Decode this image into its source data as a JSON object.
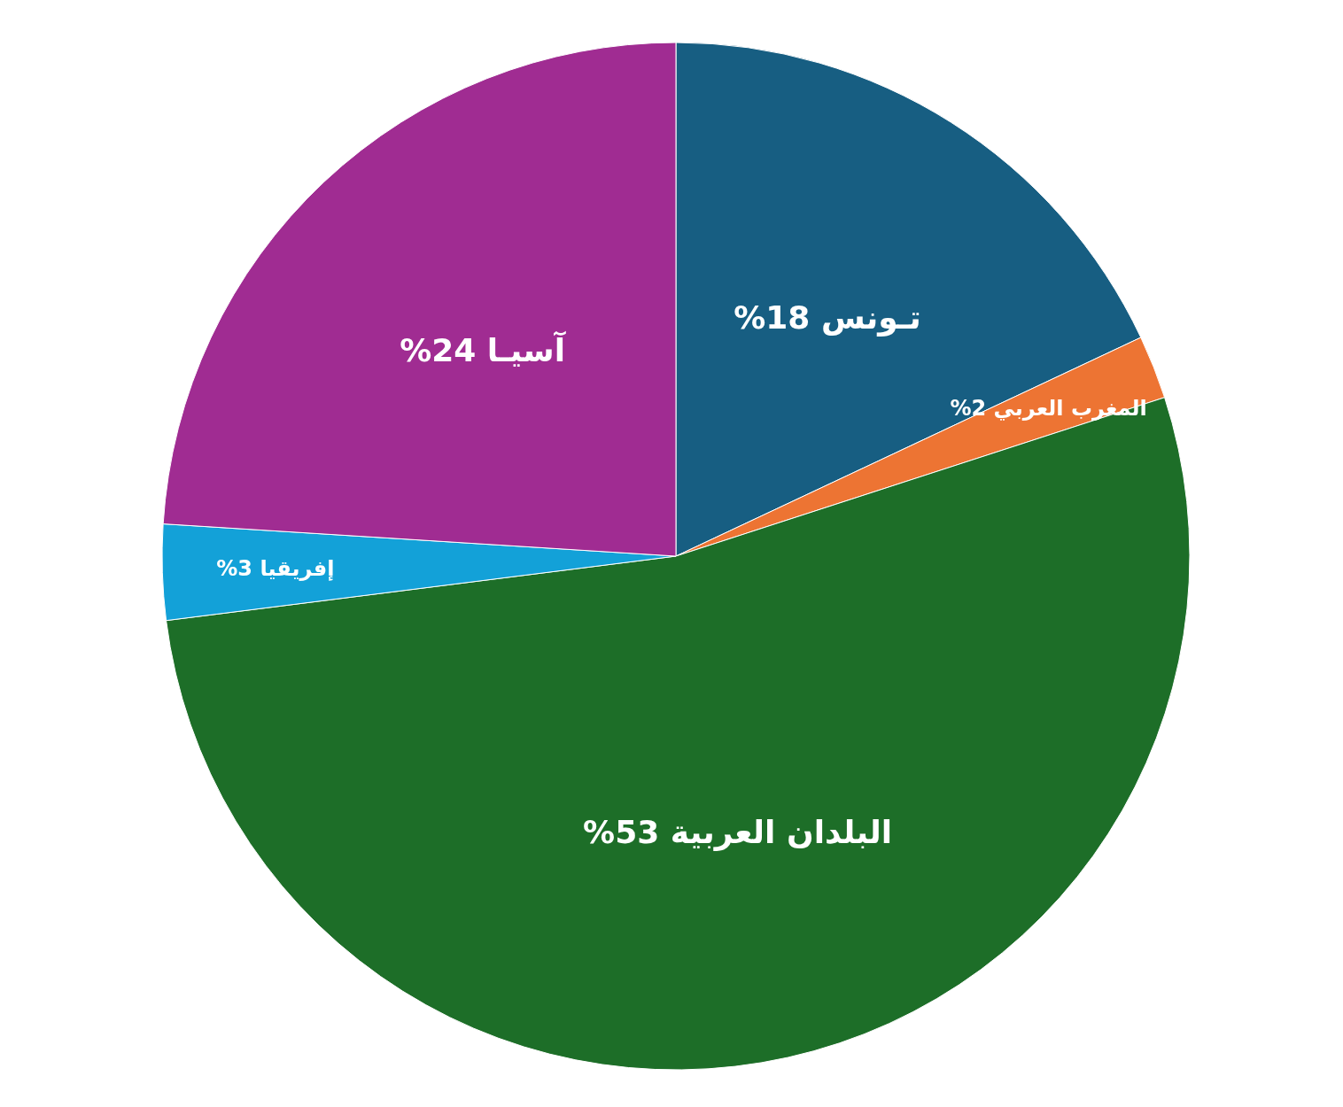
{
  "chart_data": {
    "type": "pie",
    "categories": [
      "تـونس",
      "المغرب العربي",
      "البلدان العربية",
      "إفريقيا",
      "آسيـا"
    ],
    "values": [
      18,
      2,
      53,
      3,
      24
    ],
    "colors": [
      "#175e82",
      "#ed7433",
      "#1d6e28",
      "#13a1d8",
      "#a02c92"
    ],
    "value_labels": [
      "18%",
      "2%",
      "53%",
      "3%",
      "24%"
    ]
  }
}
